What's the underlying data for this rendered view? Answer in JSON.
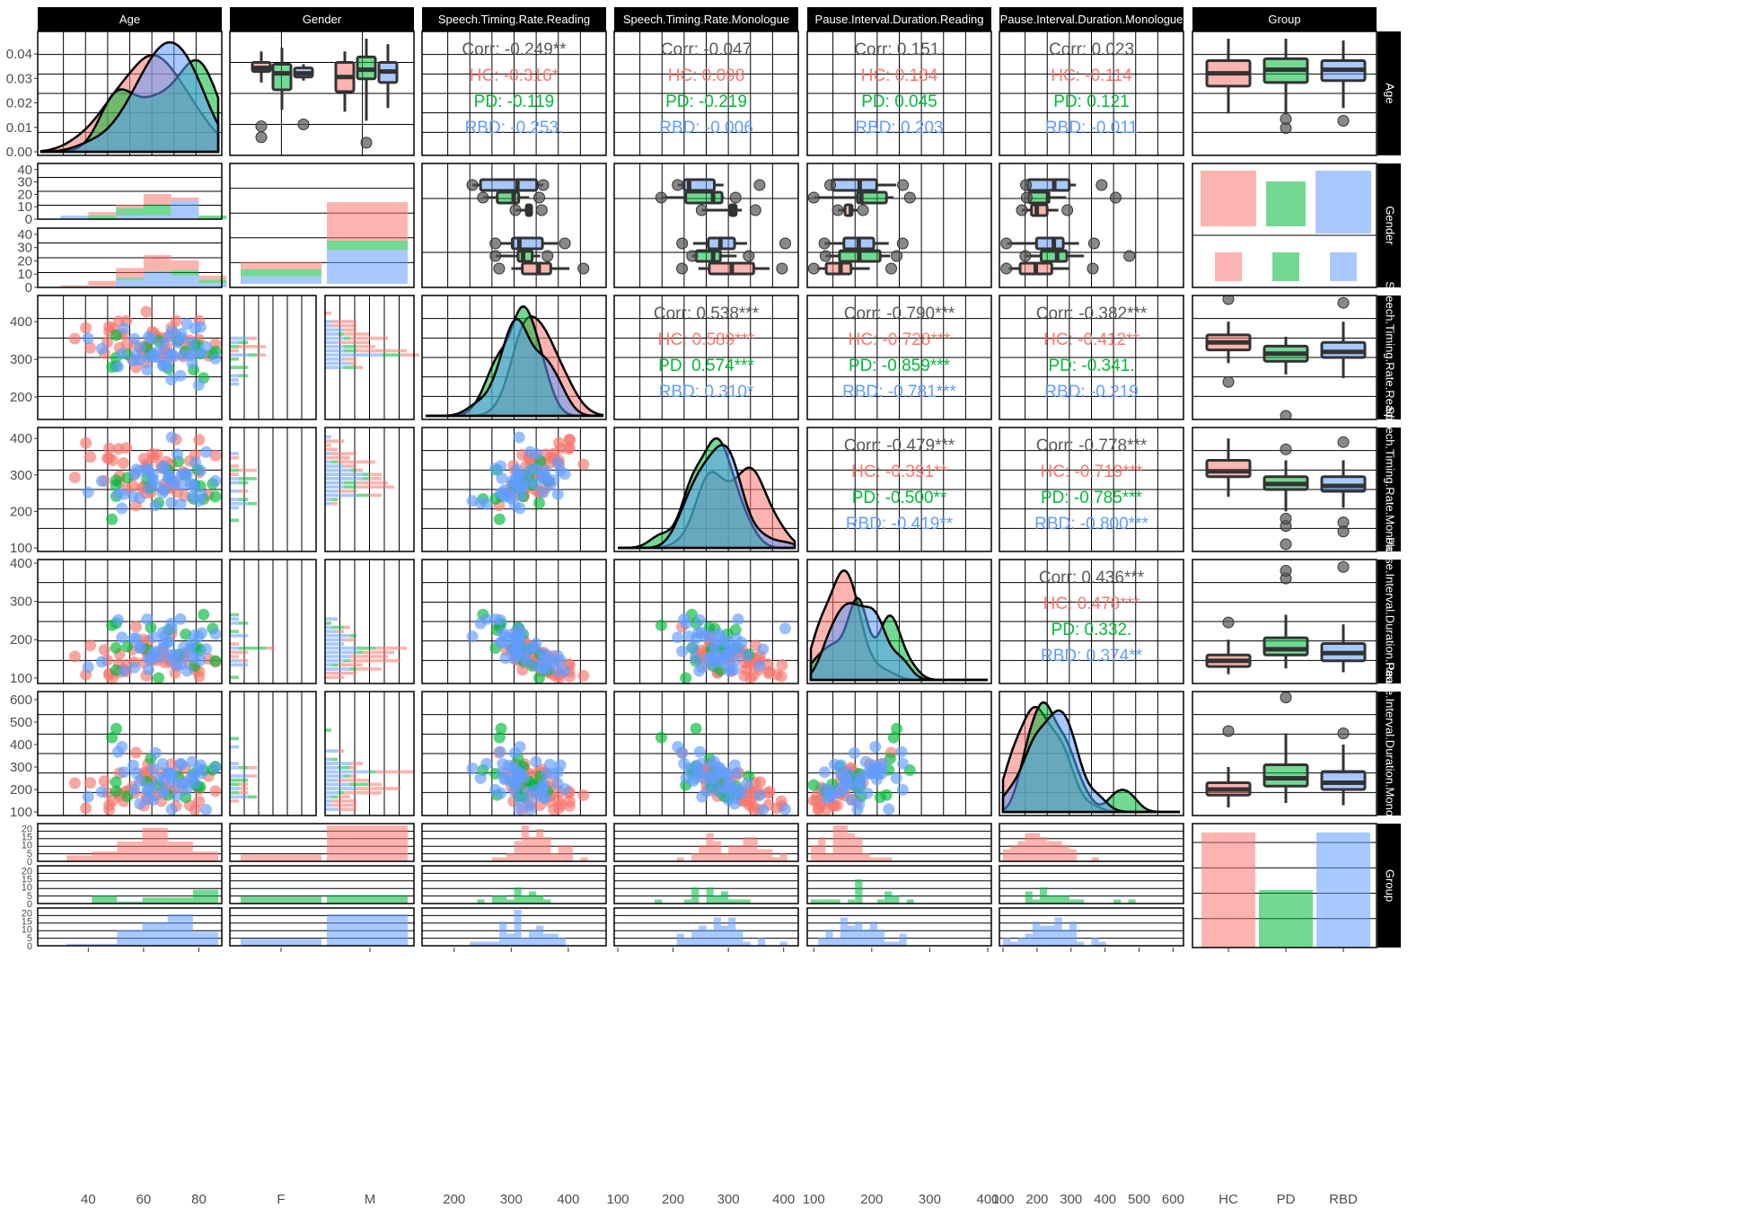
{
  "colors": {
    "HC": "#F8766D",
    "PD": "#00BA38",
    "RBD": "#619CFF",
    "corr_overall": "#5a5a5a",
    "strip": "#000000",
    "strip_text": "#ffffff",
    "grid": "#000000"
  },
  "columns": [
    "Age",
    "Gender",
    "Speech.Timing.Rate.Reading",
    "Speech.Timing.Rate.Monologue",
    "Pause.Interval.Duration.Reading",
    "Pause.Interval.Duration.Monologue",
    "Group"
  ],
  "row_strips": [
    "Age",
    "Gender",
    "Speech.Timing.Rate.Reading",
    "Speech.Timing.Rate.Monologue",
    "Pause.Interval.Duration.Reading",
    "Pause.Interval.Duration.Monologue",
    "Group"
  ],
  "x_ticks": {
    "age": [
      "40",
      "60",
      "80"
    ],
    "gender": [
      "F",
      "M"
    ],
    "str": [
      "200",
      "300",
      "400"
    ],
    "stm": [
      "100",
      "200",
      "300",
      "400"
    ],
    "pidr": [
      "100",
      "200",
      "300",
      "400"
    ],
    "pidm": [
      "100",
      "200",
      "300",
      "400",
      "500",
      "600"
    ],
    "group": [
      "HC",
      "PD",
      "RBD"
    ]
  },
  "y_ticks": {
    "age_density": [
      "0.00",
      "0.01",
      "0.02",
      "0.03",
      "0.04"
    ],
    "gender_f": [
      "0",
      "10",
      "20",
      "30",
      "40"
    ],
    "gender_m": [
      "0",
      "10",
      "20",
      "30",
      "40"
    ],
    "str": [
      "200",
      "300",
      "400"
    ],
    "stm": [
      "100",
      "200",
      "300",
      "400"
    ],
    "pidr": [
      "100",
      "200",
      "300",
      "400"
    ],
    "pidm": [
      "100",
      "200",
      "300",
      "400",
      "500",
      "600"
    ],
    "group_count": [
      "0",
      "5",
      "10",
      "15",
      "20"
    ]
  },
  "correlations": [
    {
      "row": 0,
      "col": 2,
      "lines": [
        "Corr: -0.249**",
        "HC: -0.316*",
        "PD: -0.119",
        "RBD: -0.253."
      ]
    },
    {
      "row": 0,
      "col": 3,
      "lines": [
        "Corr: -0.047",
        "HC: 0.098",
        "PD: -0.219",
        "RBD: -0.006"
      ]
    },
    {
      "row": 0,
      "col": 4,
      "lines": [
        "Corr: 0.151.",
        "HC: 0.184",
        "PD: 0.045",
        "RBD: 0.203"
      ]
    },
    {
      "row": 0,
      "col": 5,
      "lines": [
        "Corr: 0.023",
        "HC: -0.114",
        "PD: 0.121",
        "RBD: -0.011"
      ]
    },
    {
      "row": 2,
      "col": 3,
      "lines": [
        "Corr: 0.538***",
        "HC: 0.589***",
        "PD: 0.574***",
        "RBD: 0.310*"
      ]
    },
    {
      "row": 2,
      "col": 4,
      "lines": [
        "Corr: -0.790***",
        "HC: -0.728***",
        "PD: -0.859***",
        "RBD: -0.781***"
      ]
    },
    {
      "row": 2,
      "col": 5,
      "lines": [
        "Corr: -0.382***",
        "HC: -0.412**",
        "PD: -0.341.",
        "RBD: -0.219"
      ]
    },
    {
      "row": 3,
      "col": 4,
      "lines": [
        "Corr: -0.479***",
        "HC: -0.391**",
        "PD: -0.500**",
        "RBD: -0.419**"
      ]
    },
    {
      "row": 3,
      "col": 5,
      "lines": [
        "Corr: -0.778***",
        "HC: -0.719***",
        "PD: -0.785***",
        "RBD: -0.800***"
      ]
    },
    {
      "row": 4,
      "col": 5,
      "lines": [
        "Corr: 0.436***",
        "HC: 0.478***",
        "PD: 0.332.",
        "RBD: 0.374**"
      ]
    }
  ],
  "chart_data": {
    "type": "scatter",
    "title": "",
    "groups": [
      "HC",
      "PD",
      "RBD"
    ],
    "variables": [
      "Age",
      "Gender",
      "Speech.Timing.Rate.Reading",
      "Speech.Timing.Rate.Monologue",
      "Pause.Interval.Duration.Reading",
      "Pause.Interval.Duration.Monologue",
      "Group"
    ],
    "axis_ranges": {
      "Age": [
        23,
        87
      ],
      "Speech.Timing.Rate.Reading": [
        150,
        460
      ],
      "Speech.Timing.Rate.Monologue": [
        100,
        420
      ],
      "Pause.Interval.Duration.Reading": [
        95,
        400
      ],
      "Pause.Interval.Duration.Monologue": [
        100,
        620
      ],
      "age_density": [
        0,
        0.047
      ],
      "gender_count": [
        0,
        42
      ],
      "group_count": [
        0,
        23
      ]
    },
    "group_counts": {
      "HC": 22,
      "PD": 11,
      "RBD": 22
    },
    "gender_counts": {
      "F": {
        "HC": 8,
        "PD": 8,
        "RBD": 8
      },
      "M": {
        "HC": 42,
        "PD": 10,
        "RBD": 37
      }
    },
    "boxplot_age_by_group": [
      {
        "group": "HC",
        "q1": 59,
        "median": 66,
        "q3": 73,
        "min": 44,
        "max": 85,
        "outliers": []
      },
      {
        "group": "PD",
        "q1": 61,
        "median": 68,
        "q3": 74,
        "min": 44,
        "max": 85,
        "outliers": [
          36,
          41
        ]
      },
      {
        "group": "RBD",
        "q1": 62,
        "median": 68,
        "q3": 73,
        "min": 47,
        "max": 84,
        "outliers": [
          40
        ]
      }
    ],
    "boxplot_age_by_gender": [
      {
        "gender": "F",
        "group": "HC",
        "q1": 67,
        "median": 69,
        "q3": 72,
        "min": 61,
        "max": 78,
        "outliers": [
          31,
          37
        ]
      },
      {
        "gender": "F",
        "group": "PD",
        "q1": 57,
        "median": 66,
        "q3": 71,
        "min": 46,
        "max": 80,
        "outliers": []
      },
      {
        "gender": "F",
        "group": "RBD",
        "q1": 64,
        "median": 66,
        "q3": 69,
        "min": 62,
        "max": 71,
        "outliers": [
          38
        ]
      },
      {
        "gender": "M",
        "group": "HC",
        "q1": 56,
        "median": 64,
        "q3": 72,
        "min": 45,
        "max": 78,
        "outliers": []
      },
      {
        "gender": "M",
        "group": "PD",
        "q1": 63,
        "median": 68,
        "q3": 75,
        "min": 40,
        "max": 85,
        "outliers": [
          28
        ]
      },
      {
        "gender": "M",
        "group": "RBD",
        "q1": 61,
        "median": 67,
        "q3": 72,
        "min": 47,
        "max": 82,
        "outliers": []
      }
    ],
    "boxplot_str_by_group": [
      {
        "group": "HC",
        "q1": 325,
        "median": 345,
        "q3": 365,
        "min": 290,
        "max": 400,
        "outliers": [
          240,
          460
        ]
      },
      {
        "group": "PD",
        "q1": 295,
        "median": 315,
        "q3": 335,
        "min": 260,
        "max": 360,
        "outliers": [
          150
        ]
      },
      {
        "group": "RBD",
        "q1": 305,
        "median": 320,
        "q3": 345,
        "min": 250,
        "max": 400,
        "outliers": [
          450
        ]
      }
    ],
    "boxplot_stm_by_group": [
      {
        "group": "HC",
        "q1": 295,
        "median": 310,
        "q3": 340,
        "min": 240,
        "max": 400,
        "outliers": []
      },
      {
        "group": "PD",
        "q1": 260,
        "median": 275,
        "q3": 295,
        "min": 200,
        "max": 340,
        "outliers": [
          160,
          180,
          370,
          110
        ]
      },
      {
        "group": "RBD",
        "q1": 255,
        "median": 270,
        "q3": 295,
        "min": 210,
        "max": 340,
        "outliers": [
          170,
          145,
          390
        ]
      }
    ],
    "boxplot_pidr_by_group": [
      {
        "group": "HC",
        "q1": 130,
        "median": 145,
        "q3": 160,
        "min": 110,
        "max": 200,
        "outliers": [
          245
        ]
      },
      {
        "group": "PD",
        "q1": 160,
        "median": 175,
        "q3": 205,
        "min": 125,
        "max": 265,
        "outliers": [
          360,
          380
        ]
      },
      {
        "group": "RBD",
        "q1": 145,
        "median": 165,
        "q3": 190,
        "min": 115,
        "max": 240,
        "outliers": [
          390
        ]
      }
    ],
    "boxplot_pidm_by_group": [
      {
        "group": "HC",
        "q1": 175,
        "median": 200,
        "q3": 230,
        "min": 120,
        "max": 300,
        "outliers": [
          460
        ]
      },
      {
        "group": "PD",
        "q1": 215,
        "median": 250,
        "q3": 310,
        "min": 140,
        "max": 450,
        "outliers": [
          610
        ]
      },
      {
        "group": "RBD",
        "q1": 200,
        "median": 230,
        "q3": 280,
        "min": 130,
        "max": 400,
        "outliers": [
          450
        ]
      }
    ]
  }
}
